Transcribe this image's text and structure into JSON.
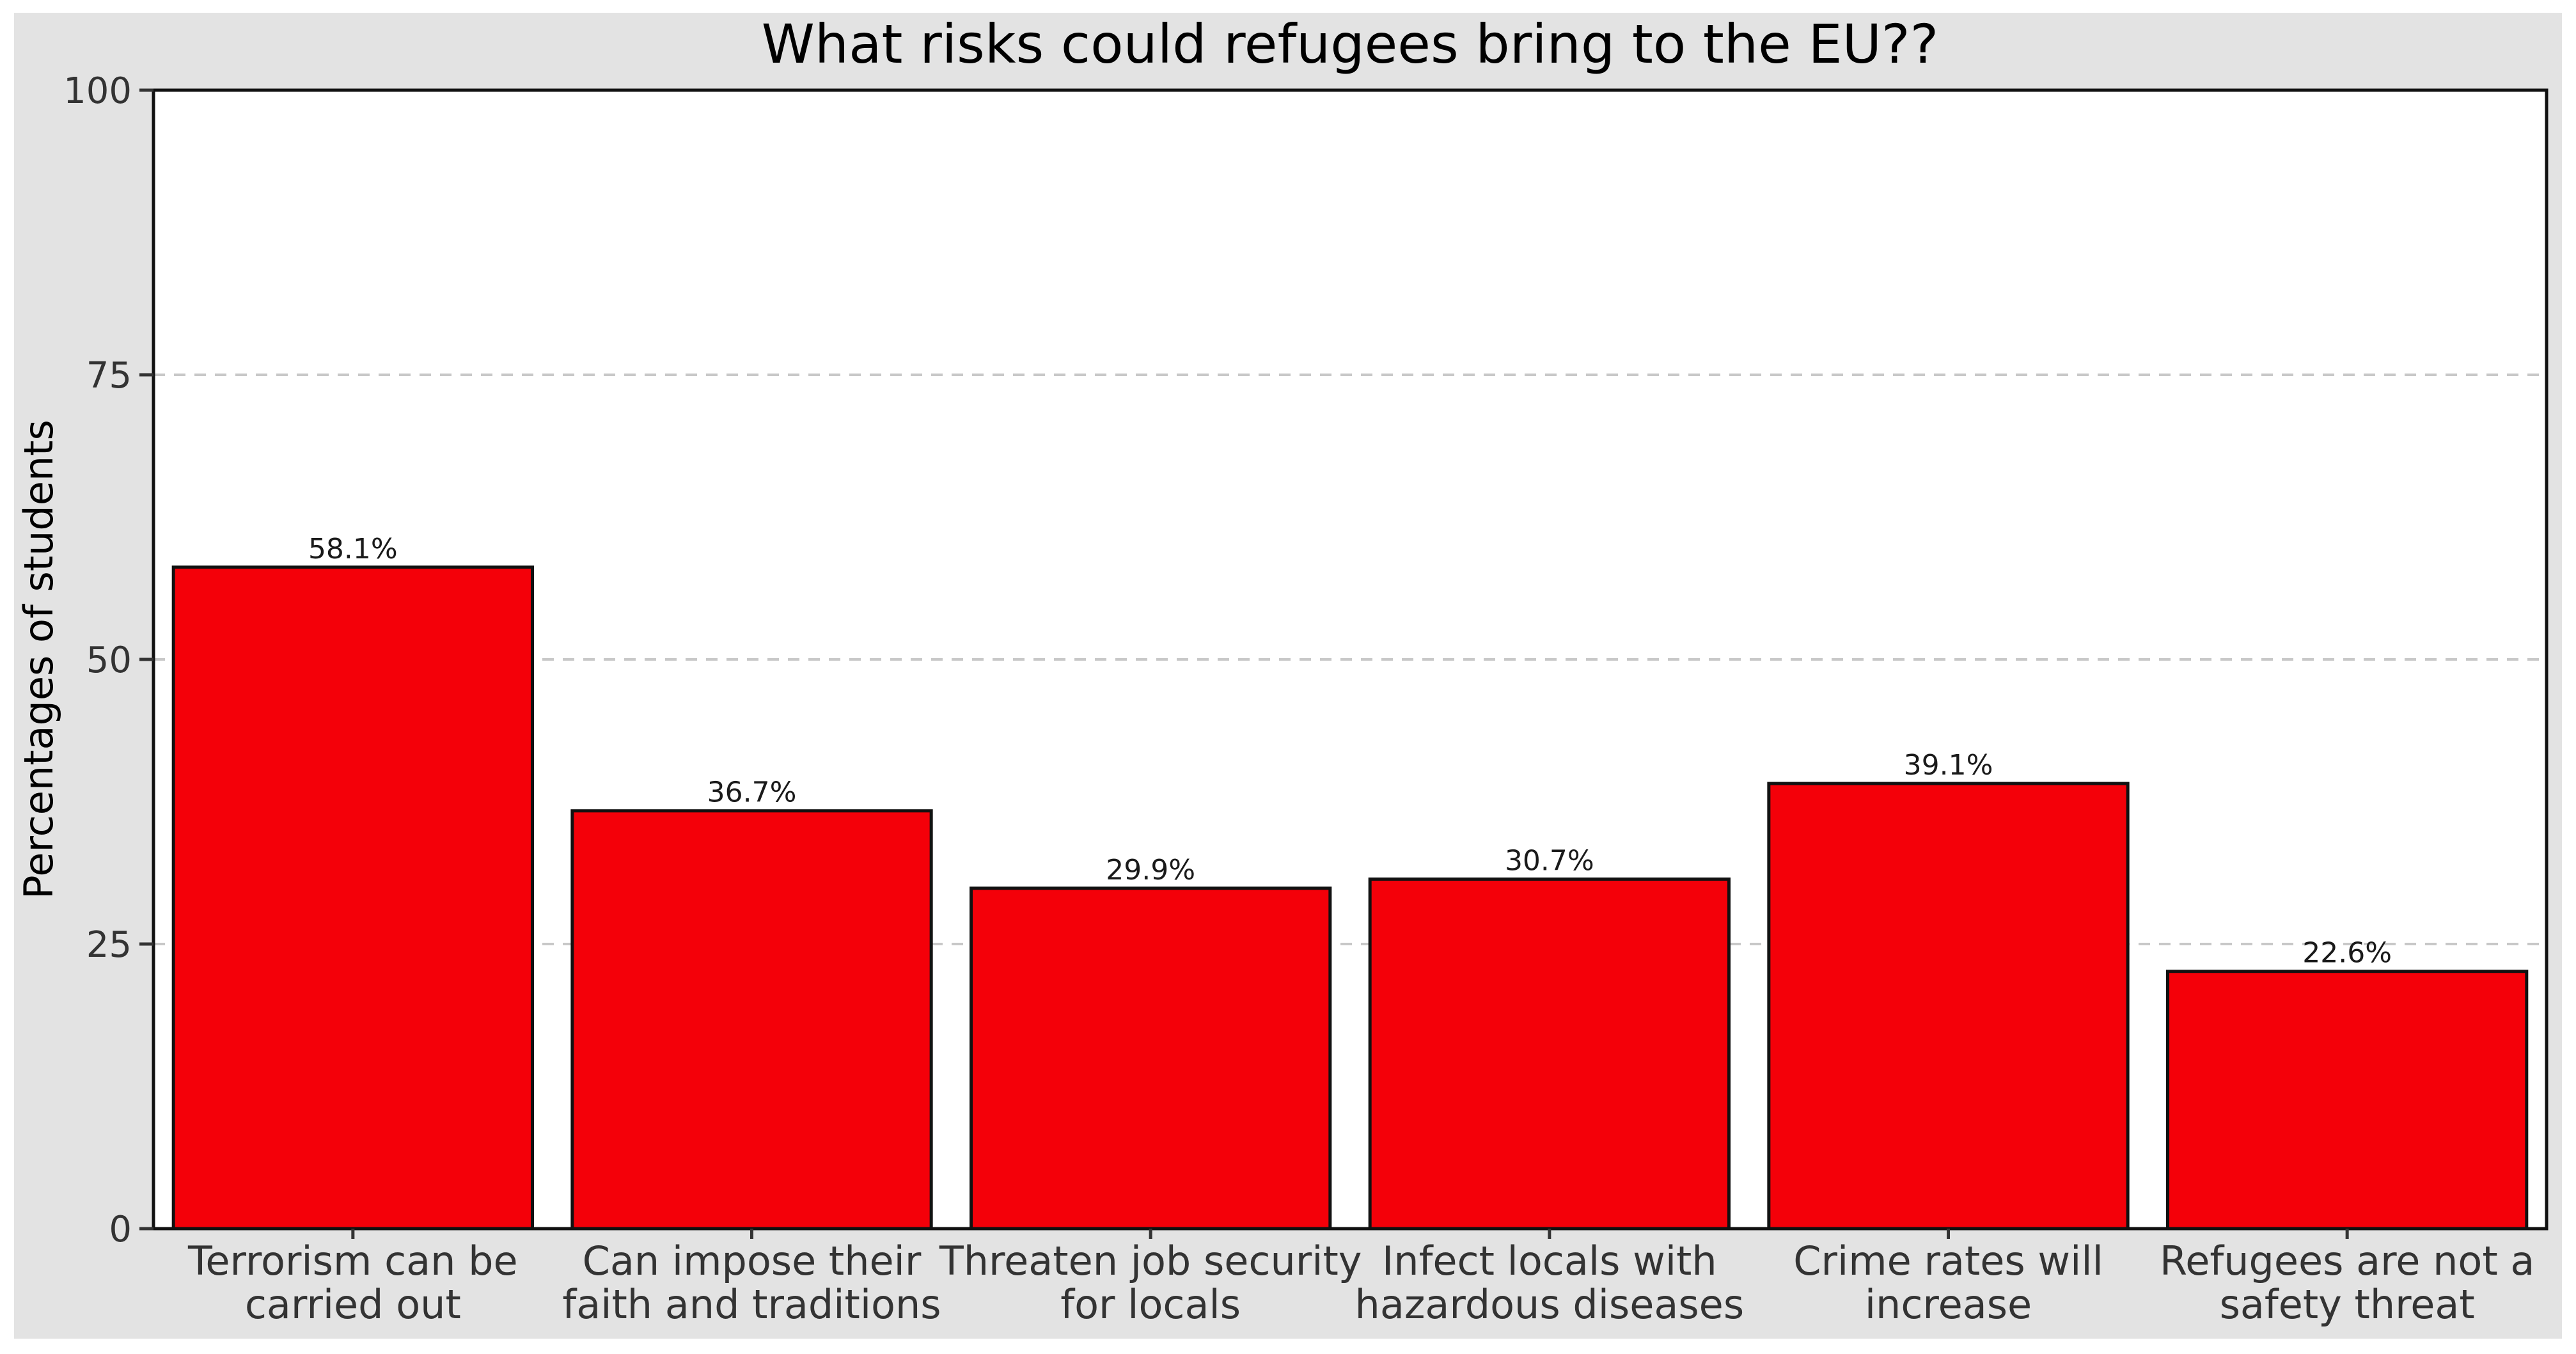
{
  "chart_data": {
    "type": "bar",
    "title": "What risks could refugees bring to the EU??",
    "xlabel": "",
    "ylabel": "Percentages of students",
    "ylim": [
      0,
      100
    ],
    "yticks": [
      0,
      25,
      50,
      75,
      100
    ],
    "categories": [
      [
        "Terrorism can be",
        "carried out"
      ],
      [
        "Can impose their",
        "faith and traditions"
      ],
      [
        "Threaten job security",
        "for locals"
      ],
      [
        "Infect locals with",
        "hazardous diseases"
      ],
      [
        "Crime rates will",
        "increase"
      ],
      [
        "Refugees are not a",
        "safety threat"
      ]
    ],
    "values": [
      58.1,
      36.7,
      29.9,
      30.7,
      39.1,
      22.6
    ],
    "value_labels": [
      "58.1%",
      "36.7%",
      "29.9%",
      "30.7%",
      "39.1%",
      "22.6%"
    ],
    "grid": "horizontal dashed",
    "legend": "none",
    "bar_color": "#f40009",
    "background_color": "#e3e3e3",
    "plot_background_color": "#ffffff"
  }
}
